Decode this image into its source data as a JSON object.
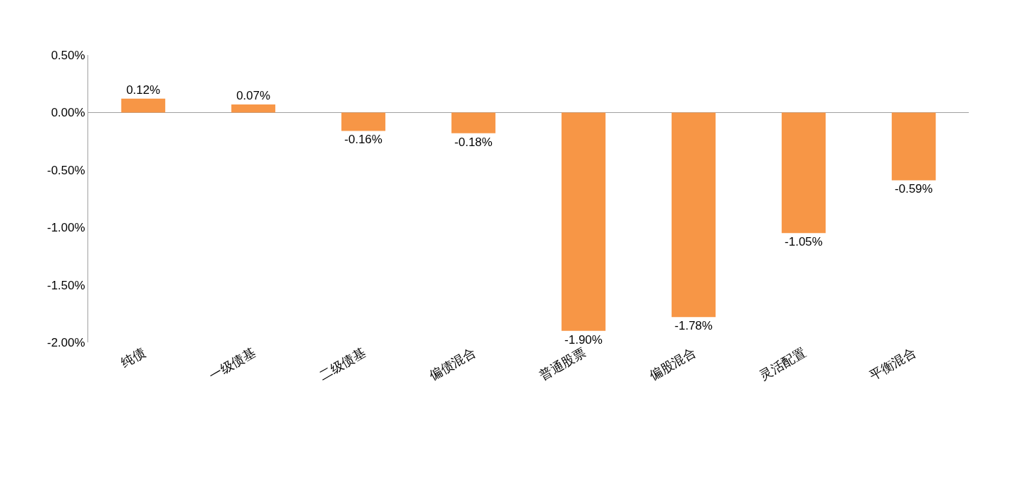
{
  "chart_data": {
    "type": "bar",
    "categories": [
      "纯债",
      "一级债基",
      "二级债基",
      "偏债混合",
      "普通股票",
      "偏股混合",
      "灵活配置",
      "平衡混合"
    ],
    "values": [
      0.12,
      0.07,
      -0.16,
      -0.18,
      -1.9,
      -1.78,
      -1.05,
      -0.59
    ],
    "value_labels": [
      "0.12%",
      "0.07%",
      "-0.16%",
      "-0.18%",
      "-1.90%",
      "-1.78%",
      "-1.05%",
      "-0.59%"
    ],
    "color": "#f79646",
    "ylim": [
      -2.0,
      0.5
    ],
    "yticks": [
      {
        "value": 0.5,
        "label": "0.50%"
      },
      {
        "value": 0.0,
        "label": "0.00%"
      },
      {
        "value": -0.5,
        "label": "-0.50%"
      },
      {
        "value": -1.0,
        "label": "-1.00%"
      },
      {
        "value": -1.5,
        "label": "-1.50%"
      },
      {
        "value": -2.0,
        "label": "-2.00%"
      }
    ]
  }
}
